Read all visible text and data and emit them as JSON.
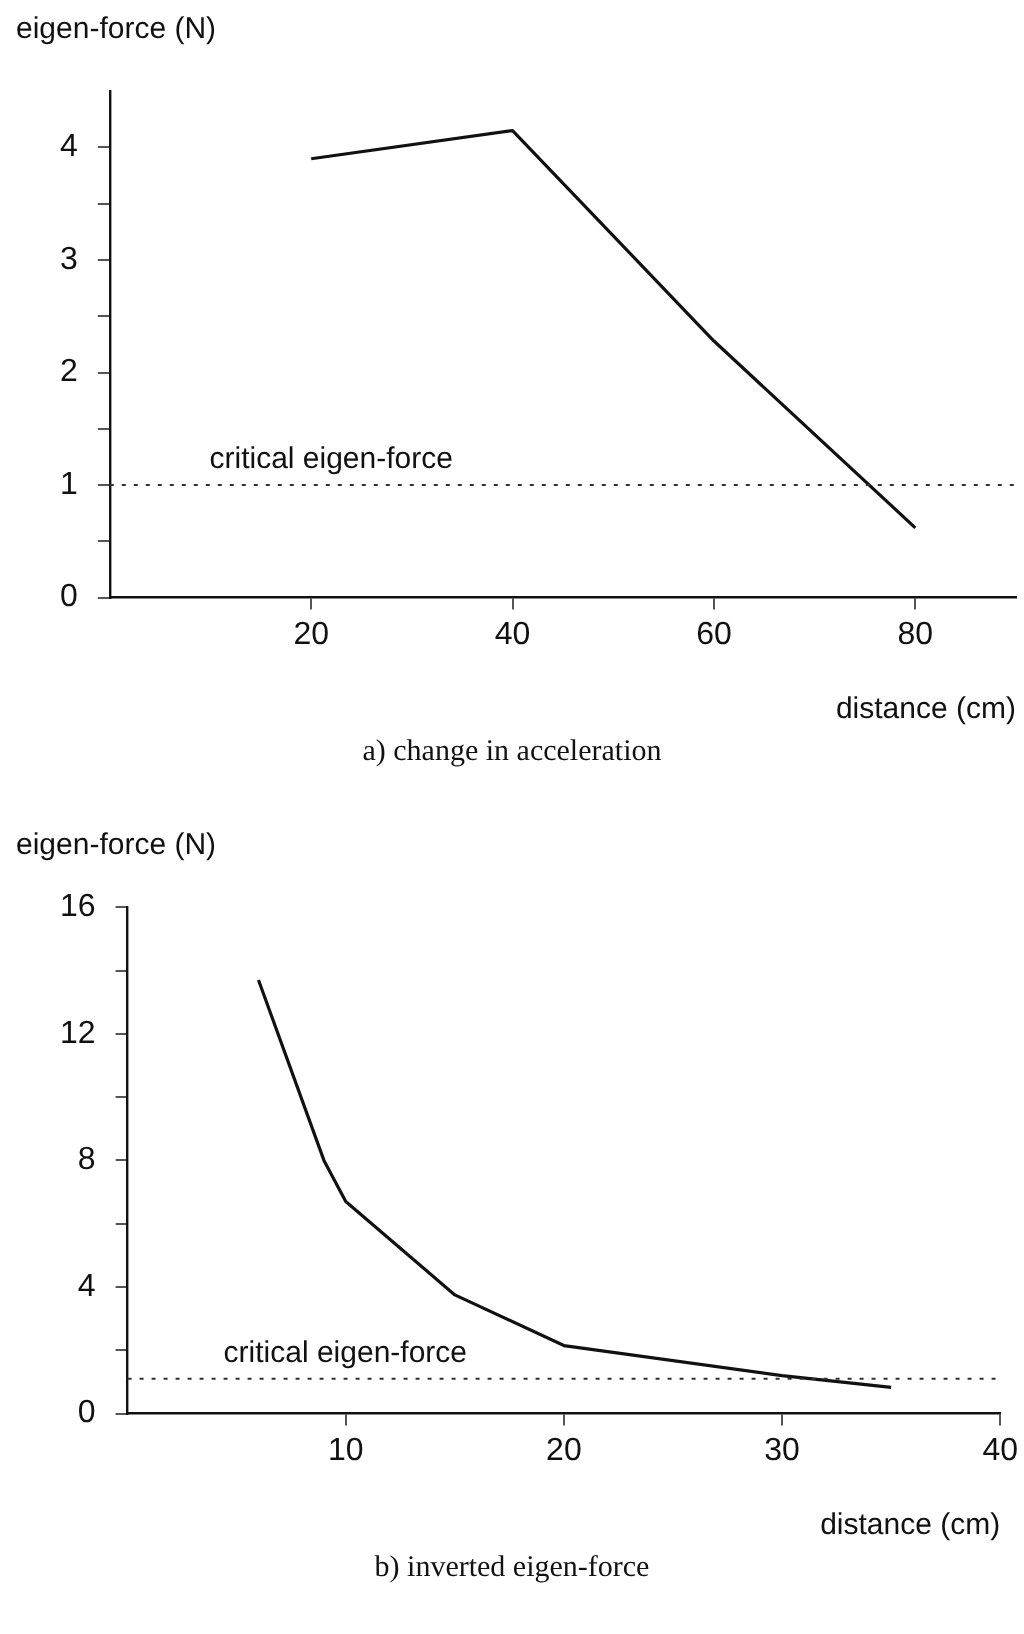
{
  "chart_data": [
    {
      "type": "line",
      "title": "a) change in acceleration",
      "xlabel": "distance (cm)",
      "ylabel": "eigen-force (N)",
      "x": [
        20,
        40,
        60,
        80
      ],
      "series": [
        {
          "color": "#111111",
          "values": [
            3.9,
            4.15,
            2.28,
            0.62
          ]
        }
      ],
      "xlim": [
        0,
        90
      ],
      "xticks": [
        20,
        40,
        60,
        80
      ],
      "ylim": [
        0,
        4.5
      ],
      "yticks": [
        0,
        {
          "value": 0.5,
          "label": null
        },
        1,
        {
          "value": 1.5,
          "label": null
        },
        2,
        {
          "value": 2.5,
          "label": null
        },
        3,
        {
          "value": 3.5,
          "label": null
        },
        4
      ],
      "ref_lines": [
        {
          "axis": "y",
          "value": 1,
          "label": "critical eigen-force",
          "color": "#333333",
          "line_style": "dotted"
        }
      ],
      "grid": false,
      "legend": false,
      "marker": "none",
      "line_style": "solid"
    },
    {
      "type": "line",
      "title": "b) inverted eigen-force",
      "xlabel": "distance (cm)",
      "ylabel": "eigen-force (N)",
      "x": [
        6,
        9,
        10,
        15,
        20,
        30,
        35
      ],
      "series": [
        {
          "color": "#111111",
          "values": [
            13.7,
            8,
            6.7,
            3.75,
            2.15,
            1.2,
            0.83
          ]
        }
      ],
      "xlim": [
        0,
        40
      ],
      "xticks": [
        10,
        20,
        30,
        40
      ],
      "ylim": [
        0,
        16
      ],
      "yticks": [
        0,
        {
          "value": 2,
          "label": null
        },
        4,
        {
          "value": 6,
          "label": null
        },
        8,
        {
          "value": 10,
          "label": null
        },
        12,
        {
          "value": 14,
          "label": null
        },
        16
      ],
      "ref_lines": [
        {
          "axis": "y",
          "value": 1.1,
          "label": "critical eigen-force",
          "color": "#333333",
          "line_style": "dotted"
        }
      ],
      "grid": false,
      "legend": false,
      "marker": "none",
      "line_style": "solid"
    }
  ]
}
